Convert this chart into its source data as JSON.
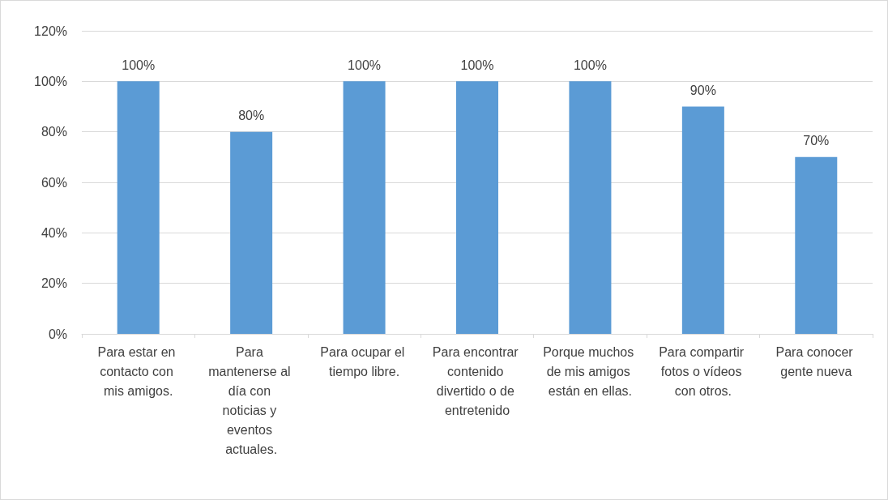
{
  "chart_data": {
    "type": "bar",
    "categories": [
      "Para estar en contacto con mis amigos.",
      "Para mantenerse al día con noticias y eventos actuales.",
      "Para ocupar el tiempo libre.",
      "Para encontrar contenido divertido o de entretenido",
      "Porque muchos de mis amigos están en ellas.",
      "Para compartir fotos o vídeos con otros.",
      "Para conocer gente nueva"
    ],
    "values": [
      100,
      80,
      100,
      100,
      100,
      90,
      70
    ],
    "value_labels": [
      "100%",
      "80%",
      "100%",
      "100%",
      "100%",
      "90%",
      "70%"
    ],
    "color": "#5b9bd5",
    "ylim": [
      0,
      120
    ],
    "yticks": [
      {
        "value": 0,
        "label": "0%"
      },
      {
        "value": 20,
        "label": "20%"
      },
      {
        "value": 40,
        "label": "40%"
      },
      {
        "value": 60,
        "label": "60%"
      },
      {
        "value": 80,
        "label": "80%"
      },
      {
        "value": 100,
        "label": "100%"
      },
      {
        "value": 120,
        "label": "120%"
      }
    ],
    "grid": "y"
  }
}
